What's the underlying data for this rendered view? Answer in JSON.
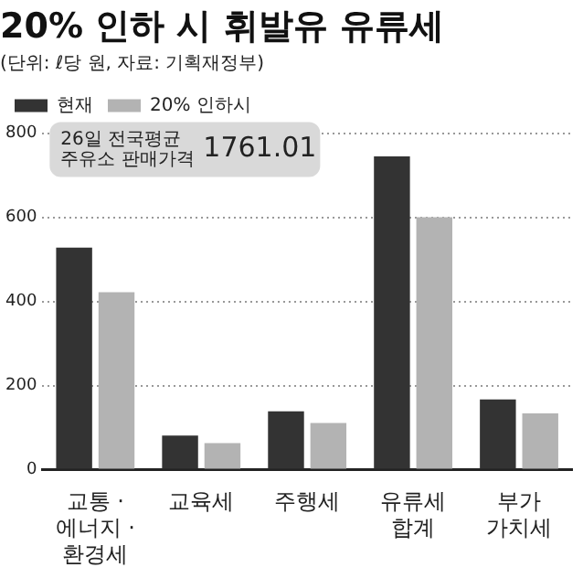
{
  "chart_data": {
    "type": "bar",
    "title": "20% 인하 시 휘발유 유류세",
    "subtitle": "(단위: ℓ당 원, 자료: 기획재정부)",
    "categories": [
      "교통 ·\n에너지 ·\n환경세",
      "교육세",
      "주행세",
      "유류세\n합계",
      "부가\n가치세"
    ],
    "series": [
      {
        "name": "현재",
        "color": "#333333",
        "values": [
          528,
          81,
          139,
          745,
          167
        ]
      },
      {
        "name": "20% 인하시",
        "color": "#b3b3b3",
        "values": [
          422,
          63,
          111,
          600,
          134
        ]
      }
    ],
    "ylim": [
      0,
      800
    ],
    "yticks": [
      0,
      200,
      400,
      600,
      800
    ],
    "grid": "y",
    "legend": "top left",
    "annotations": [
      "26일 전국평균\n주유소 판매가격",
      "1761.01"
    ]
  }
}
